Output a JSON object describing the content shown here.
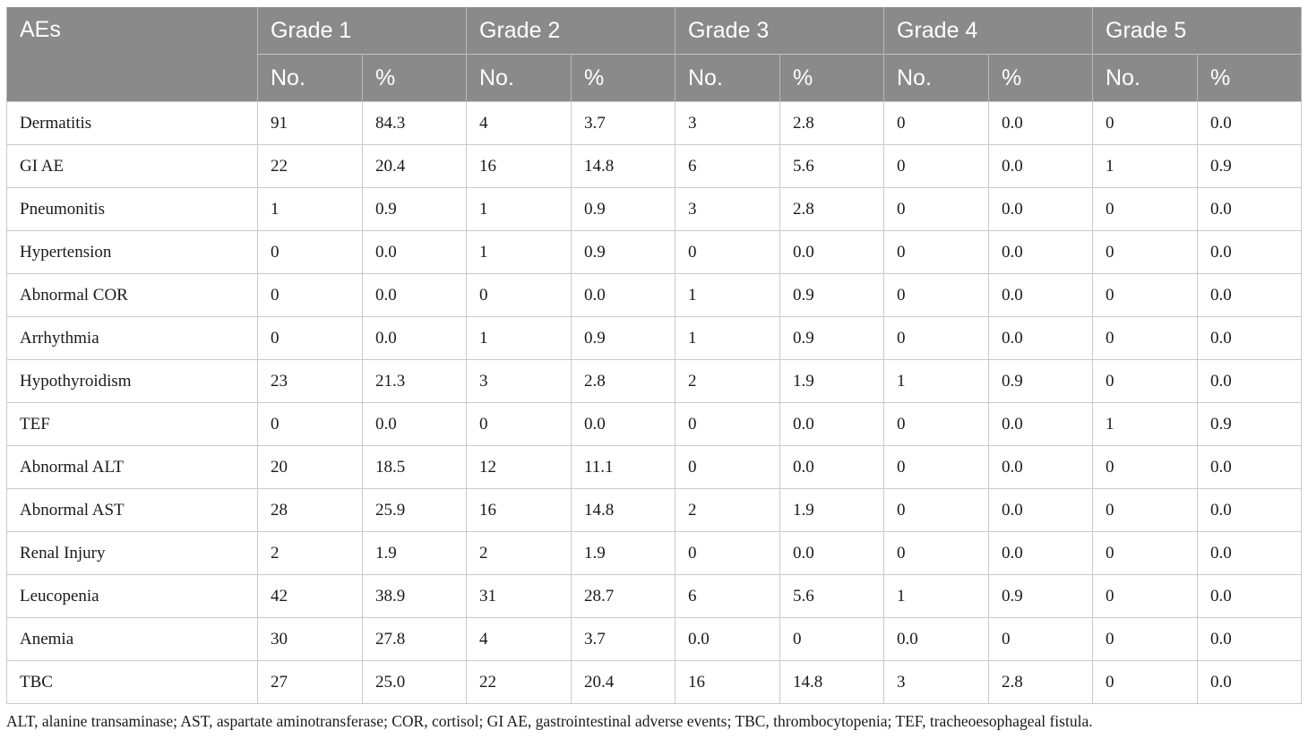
{
  "header": {
    "ae_label": "AEs",
    "grades": [
      "Grade 1",
      "Grade 2",
      "Grade 3",
      "Grade 4",
      "Grade 5"
    ],
    "no_label": "No.",
    "pct_label": "%"
  },
  "rows": [
    {
      "name": "Dermatitis",
      "cells": [
        "91",
        "84.3",
        "4",
        "3.7",
        "3",
        "2.8",
        "0",
        "0.0",
        "0",
        "0.0"
      ]
    },
    {
      "name": "GI AE",
      "cells": [
        "22",
        "20.4",
        "16",
        "14.8",
        "6",
        "5.6",
        "0",
        "0.0",
        "1",
        "0.9"
      ]
    },
    {
      "name": "Pneumonitis",
      "cells": [
        "1",
        "0.9",
        "1",
        "0.9",
        "3",
        "2.8",
        "0",
        "0.0",
        "0",
        "0.0"
      ]
    },
    {
      "name": "Hypertension",
      "cells": [
        "0",
        "0.0",
        "1",
        "0.9",
        "0",
        "0.0",
        "0",
        "0.0",
        "0",
        "0.0"
      ]
    },
    {
      "name": "Abnormal COR",
      "cells": [
        "0",
        "0.0",
        "0",
        "0.0",
        "1",
        "0.9",
        "0",
        "0.0",
        "0",
        "0.0"
      ]
    },
    {
      "name": "Arrhythmia",
      "cells": [
        "0",
        "0.0",
        "1",
        "0.9",
        "1",
        "0.9",
        "0",
        "0.0",
        "0",
        "0.0"
      ]
    },
    {
      "name": "Hypothyroidism",
      "cells": [
        "23",
        "21.3",
        "3",
        "2.8",
        "2",
        "1.9",
        "1",
        "0.9",
        "0",
        "0.0"
      ]
    },
    {
      "name": "TEF",
      "cells": [
        "0",
        "0.0",
        "0",
        "0.0",
        "0",
        "0.0",
        "0",
        "0.0",
        "1",
        "0.9"
      ]
    },
    {
      "name": "Abnormal ALT",
      "cells": [
        "20",
        "18.5",
        "12",
        "11.1",
        "0",
        "0.0",
        "0",
        "0.0",
        "0",
        "0.0"
      ]
    },
    {
      "name": "Abnormal AST",
      "cells": [
        "28",
        "25.9",
        "16",
        "14.8",
        "2",
        "1.9",
        "0",
        "0.0",
        "0",
        "0.0"
      ]
    },
    {
      "name": "Renal Injury",
      "cells": [
        "2",
        "1.9",
        "2",
        "1.9",
        "0",
        "0.0",
        "0",
        "0.0",
        "0",
        "0.0"
      ]
    },
    {
      "name": "Leucopenia",
      "cells": [
        "42",
        "38.9",
        "31",
        "28.7",
        "6",
        "5.6",
        "1",
        "0.9",
        "0",
        "0.0"
      ]
    },
    {
      "name": "Anemia",
      "cells": [
        "30",
        "27.8",
        "4",
        "3.7",
        "0.0",
        "0",
        "0.0",
        "0",
        "0",
        "0.0"
      ]
    },
    {
      "name": "TBC",
      "cells": [
        "27",
        "25.0",
        "22",
        "20.4",
        "16",
        "14.8",
        "3",
        "2.8",
        "0",
        "0.0"
      ]
    }
  ],
  "footnote": "ALT, alanine transaminase; AST, aspartate aminotransferase; COR, cortisol; GI AE, gastrointestinal adverse events; TBC, thrombocytopenia; TEF, tracheoesophageal fistula."
}
